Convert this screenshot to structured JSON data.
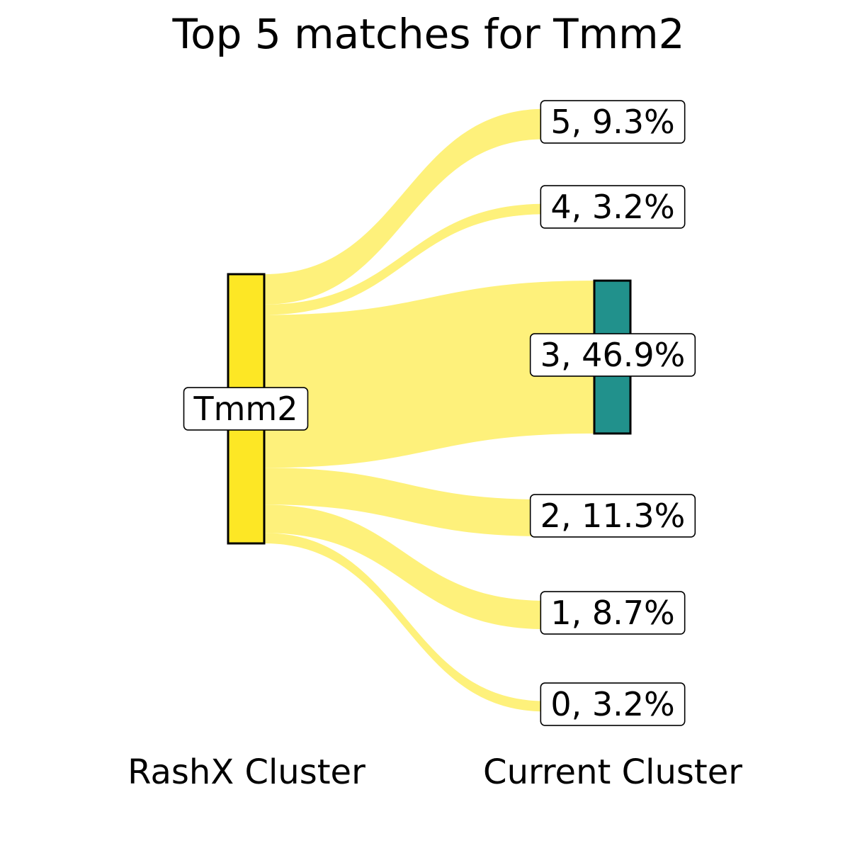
{
  "chart_data": {
    "type": "sankey",
    "title": "Top 5 matches for Tmm2",
    "source_axis_label": "RashX Cluster",
    "target_axis_label": "Current Cluster",
    "source": {
      "label": "Tmm2",
      "color": "#fde725"
    },
    "flow_color": "#fef17b",
    "highlight_color": "#21918c",
    "targets": [
      {
        "id": "5",
        "label": "5, 9.3%",
        "percent": 9.3,
        "highlighted": false
      },
      {
        "id": "4",
        "label": "4, 3.2%",
        "percent": 3.2,
        "highlighted": false
      },
      {
        "id": "3",
        "label": "3, 46.9%",
        "percent": 46.9,
        "highlighted": true
      },
      {
        "id": "2",
        "label": "2, 11.3%",
        "percent": 11.3,
        "highlighted": false
      },
      {
        "id": "1",
        "label": "1, 8.7%",
        "percent": 8.7,
        "highlighted": false
      },
      {
        "id": "0",
        "label": "0, 3.2%",
        "percent": 3.2,
        "highlighted": false
      }
    ]
  }
}
